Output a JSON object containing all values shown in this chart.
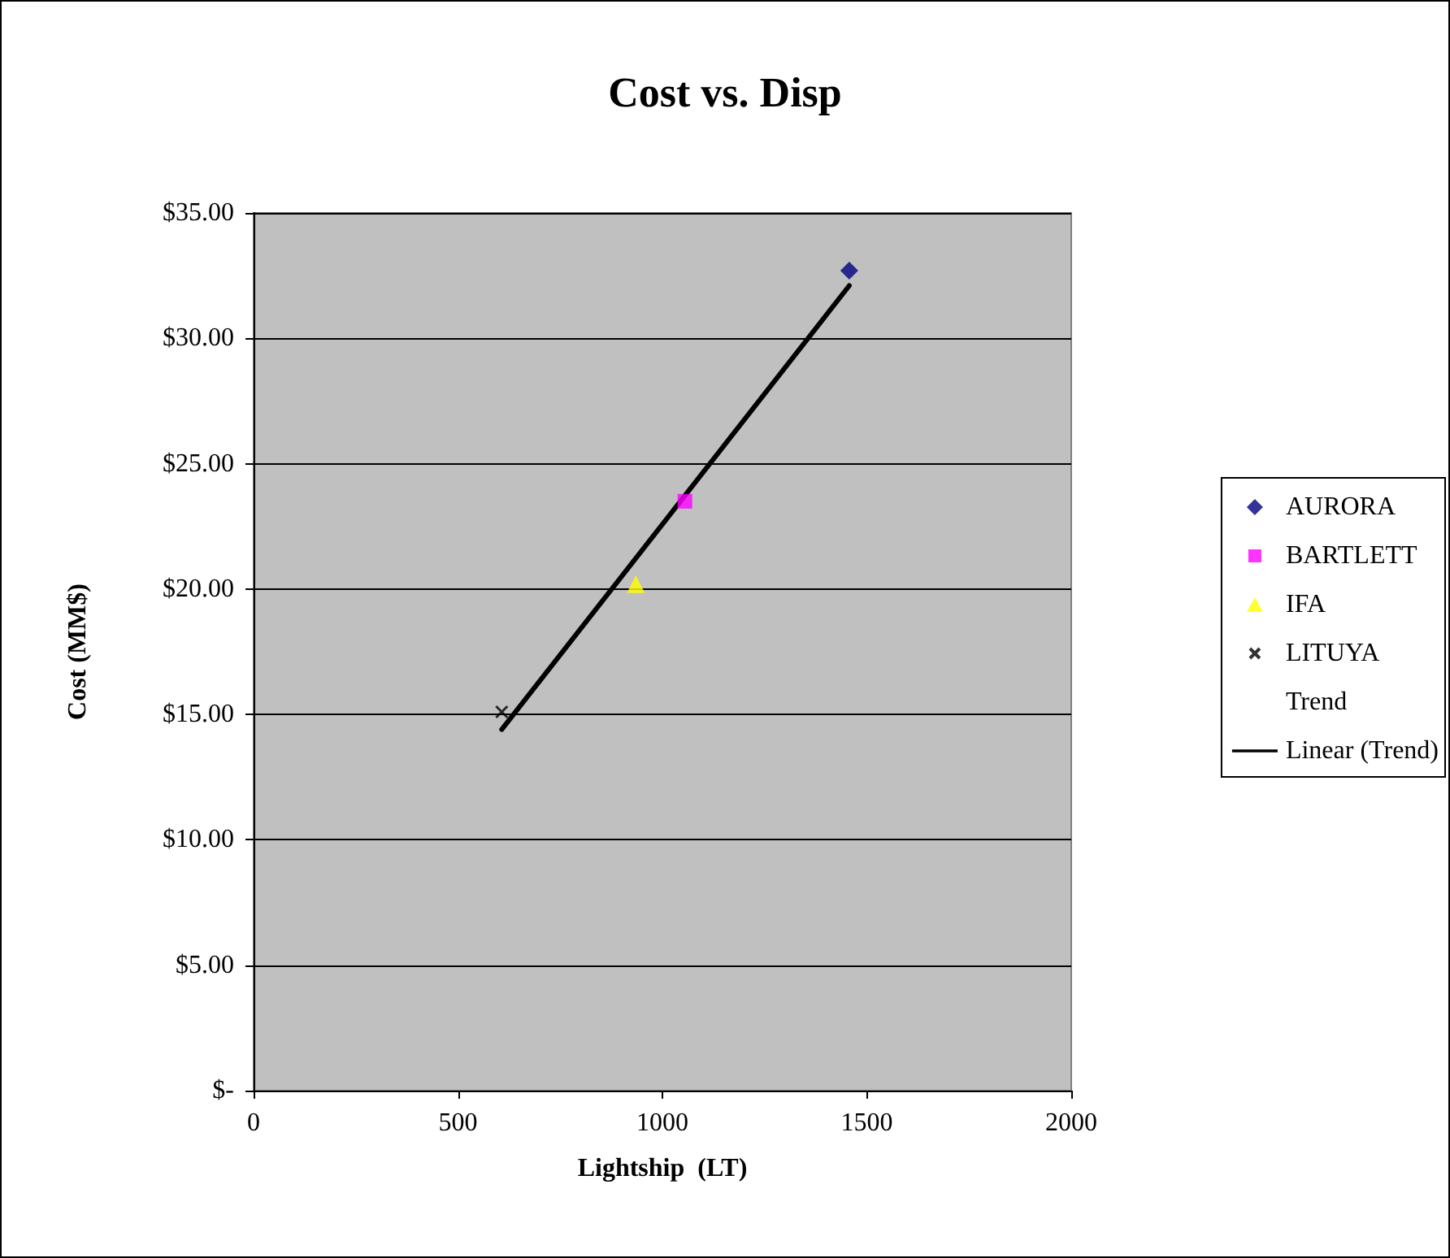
{
  "chart_data": {
    "type": "scatter",
    "title": "Cost vs. Disp",
    "xlabel": "Lightship  (LT)",
    "ylabel": "Cost (MM$)",
    "xlim": [
      0,
      2000
    ],
    "xticks": [
      0,
      500,
      1000,
      1500,
      2000
    ],
    "ylim": [
      0,
      35
    ],
    "yticks": [
      {
        "value": 0,
        "label": "$-"
      },
      {
        "value": 5,
        "label": "$5.00"
      },
      {
        "value": 10,
        "label": "$10.00"
      },
      {
        "value": 15,
        "label": "$15.00"
      },
      {
        "value": 20,
        "label": "$20.00"
      },
      {
        "value": 25,
        "label": "$25.00"
      },
      {
        "value": 30,
        "label": "$30.00"
      },
      {
        "value": 35,
        "label": "$35.00"
      }
    ],
    "grid": "y",
    "legend": "right",
    "series": [
      {
        "name": "AURORA",
        "color": "#000080",
        "marker": "diamond",
        "x": [
          1457
        ],
        "values": [
          32.7
        ]
      },
      {
        "name": "BARTLETT",
        "color": "#ff00ff",
        "marker": "square",
        "x": [
          1055
        ],
        "values": [
          23.5
        ]
      },
      {
        "name": "IFA",
        "color": "#ffff00",
        "marker": "triangle",
        "x": [
          935
        ],
        "values": [
          20.2
        ]
      },
      {
        "name": "LITUYA",
        "color": "#000000",
        "marker": "cross",
        "x": [
          607
        ],
        "values": [
          15.1
        ]
      },
      {
        "name": "Trend",
        "color": "#000000",
        "marker": "none"
      },
      {
        "name": "Linear (Trend)",
        "type": "line",
        "color": "#000000",
        "marker": "none",
        "line_style": "solid",
        "x": [
          607,
          1457
        ],
        "values": [
          14.4,
          32.1
        ]
      }
    ]
  }
}
